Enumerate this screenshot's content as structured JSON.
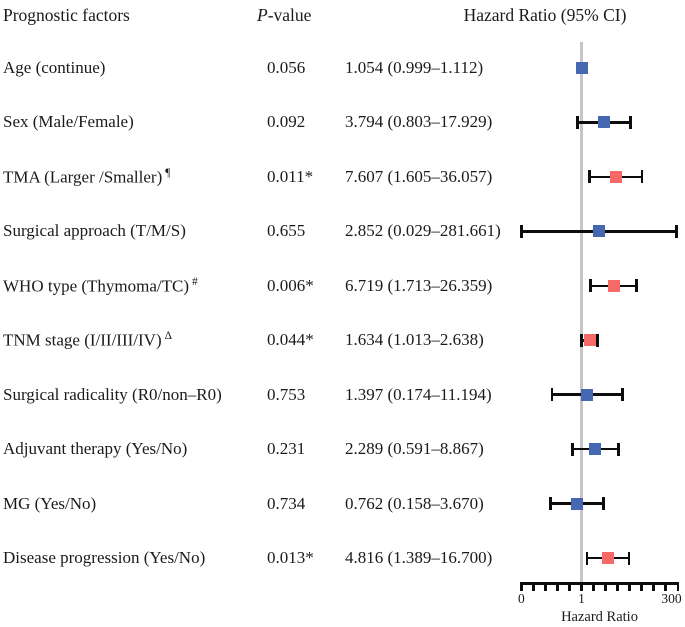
{
  "chart_data": {
    "type": "forest",
    "headers": {
      "factors": "Prognostic factors",
      "p_italic": "P",
      "p_rest": "-value",
      "hazard": "Hazard Ratio (95% CI)"
    },
    "axis": {
      "label": "Hazard Ratio",
      "scale": "log",
      "ref_line_value": 1,
      "right_value": 300,
      "num_ticks": 14,
      "tick_labels": [
        "0",
        "1",
        "300"
      ],
      "tick_label_indices": [
        0,
        5,
        13
      ]
    },
    "colors": {
      "blue": "#4667b2",
      "red": "#f56a66",
      "ref_line": "#c6c6c6",
      "bars": "#0d0d0d"
    },
    "rows": [
      {
        "label": "Age (continue)",
        "superscript": "",
        "p_value": "0.056",
        "hr_ci_text": "1.054 (0.999–1.112)",
        "hr": 1.054,
        "ci_low": 0.999,
        "ci_high": 1.112,
        "color": "blue"
      },
      {
        "label": "Sex (Male/Female)",
        "superscript": "",
        "p_value": "0.092",
        "hr_ci_text": "3.794 (0.803–17.929)",
        "hr": 3.794,
        "ci_low": 0.803,
        "ci_high": 17.929,
        "color": "blue"
      },
      {
        "label": "TMA (Larger /Smaller)",
        "superscript": "¶",
        "p_value": "0.011*",
        "hr_ci_text": "7.607 (1.605–36.057)",
        "hr": 7.607,
        "ci_low": 1.605,
        "ci_high": 36.057,
        "color": "red"
      },
      {
        "label": "Surgical approach (T/M/S)",
        "superscript": "",
        "p_value": "0.655",
        "hr_ci_text": "2.852 (0.029–281.661)",
        "hr": 2.852,
        "ci_low": 0.029,
        "ci_high": 281.661,
        "color": "blue"
      },
      {
        "label": "WHO type (Thymoma/TC)",
        "superscript": "#",
        "p_value": "0.006*",
        "hr_ci_text": "6.719 (1.713–26.359)",
        "hr": 6.719,
        "ci_low": 1.713,
        "ci_high": 26.359,
        "color": "red"
      },
      {
        "label": "TNM stage (I/II/III/IV)",
        "superscript": "Δ",
        "p_value": "0.044*",
        "hr_ci_text": "1.634 (1.013–2.638)",
        "hr": 1.634,
        "ci_low": 1.013,
        "ci_high": 2.638,
        "color": "red"
      },
      {
        "label": "Surgical radicality (R0/non–R0)",
        "superscript": "",
        "p_value": "0.753",
        "hr_ci_text": "1.397 (0.174–11.194)",
        "hr": 1.397,
        "ci_low": 0.174,
        "ci_high": 11.194,
        "color": "blue"
      },
      {
        "label": "Adjuvant therapy (Yes/No)",
        "superscript": "",
        "p_value": "0.231",
        "hr_ci_text": "2.289 (0.591–8.867)",
        "hr": 2.289,
        "ci_low": 0.591,
        "ci_high": 8.867,
        "color": "blue"
      },
      {
        "label": "MG (Yes/No)",
        "superscript": "",
        "p_value": "0.734",
        "hr_ci_text": "0.762 (0.158–3.670)",
        "hr": 0.762,
        "ci_low": 0.158,
        "ci_high": 3.67,
        "color": "blue"
      },
      {
        "label": "Disease progression (Yes/No)",
        "superscript": "",
        "p_value": "0.013*",
        "hr_ci_text": "4.816 (1.389–16.700)",
        "hr": 4.816,
        "ci_low": 1.389,
        "ci_high": 16.7,
        "color": "red"
      }
    ]
  }
}
